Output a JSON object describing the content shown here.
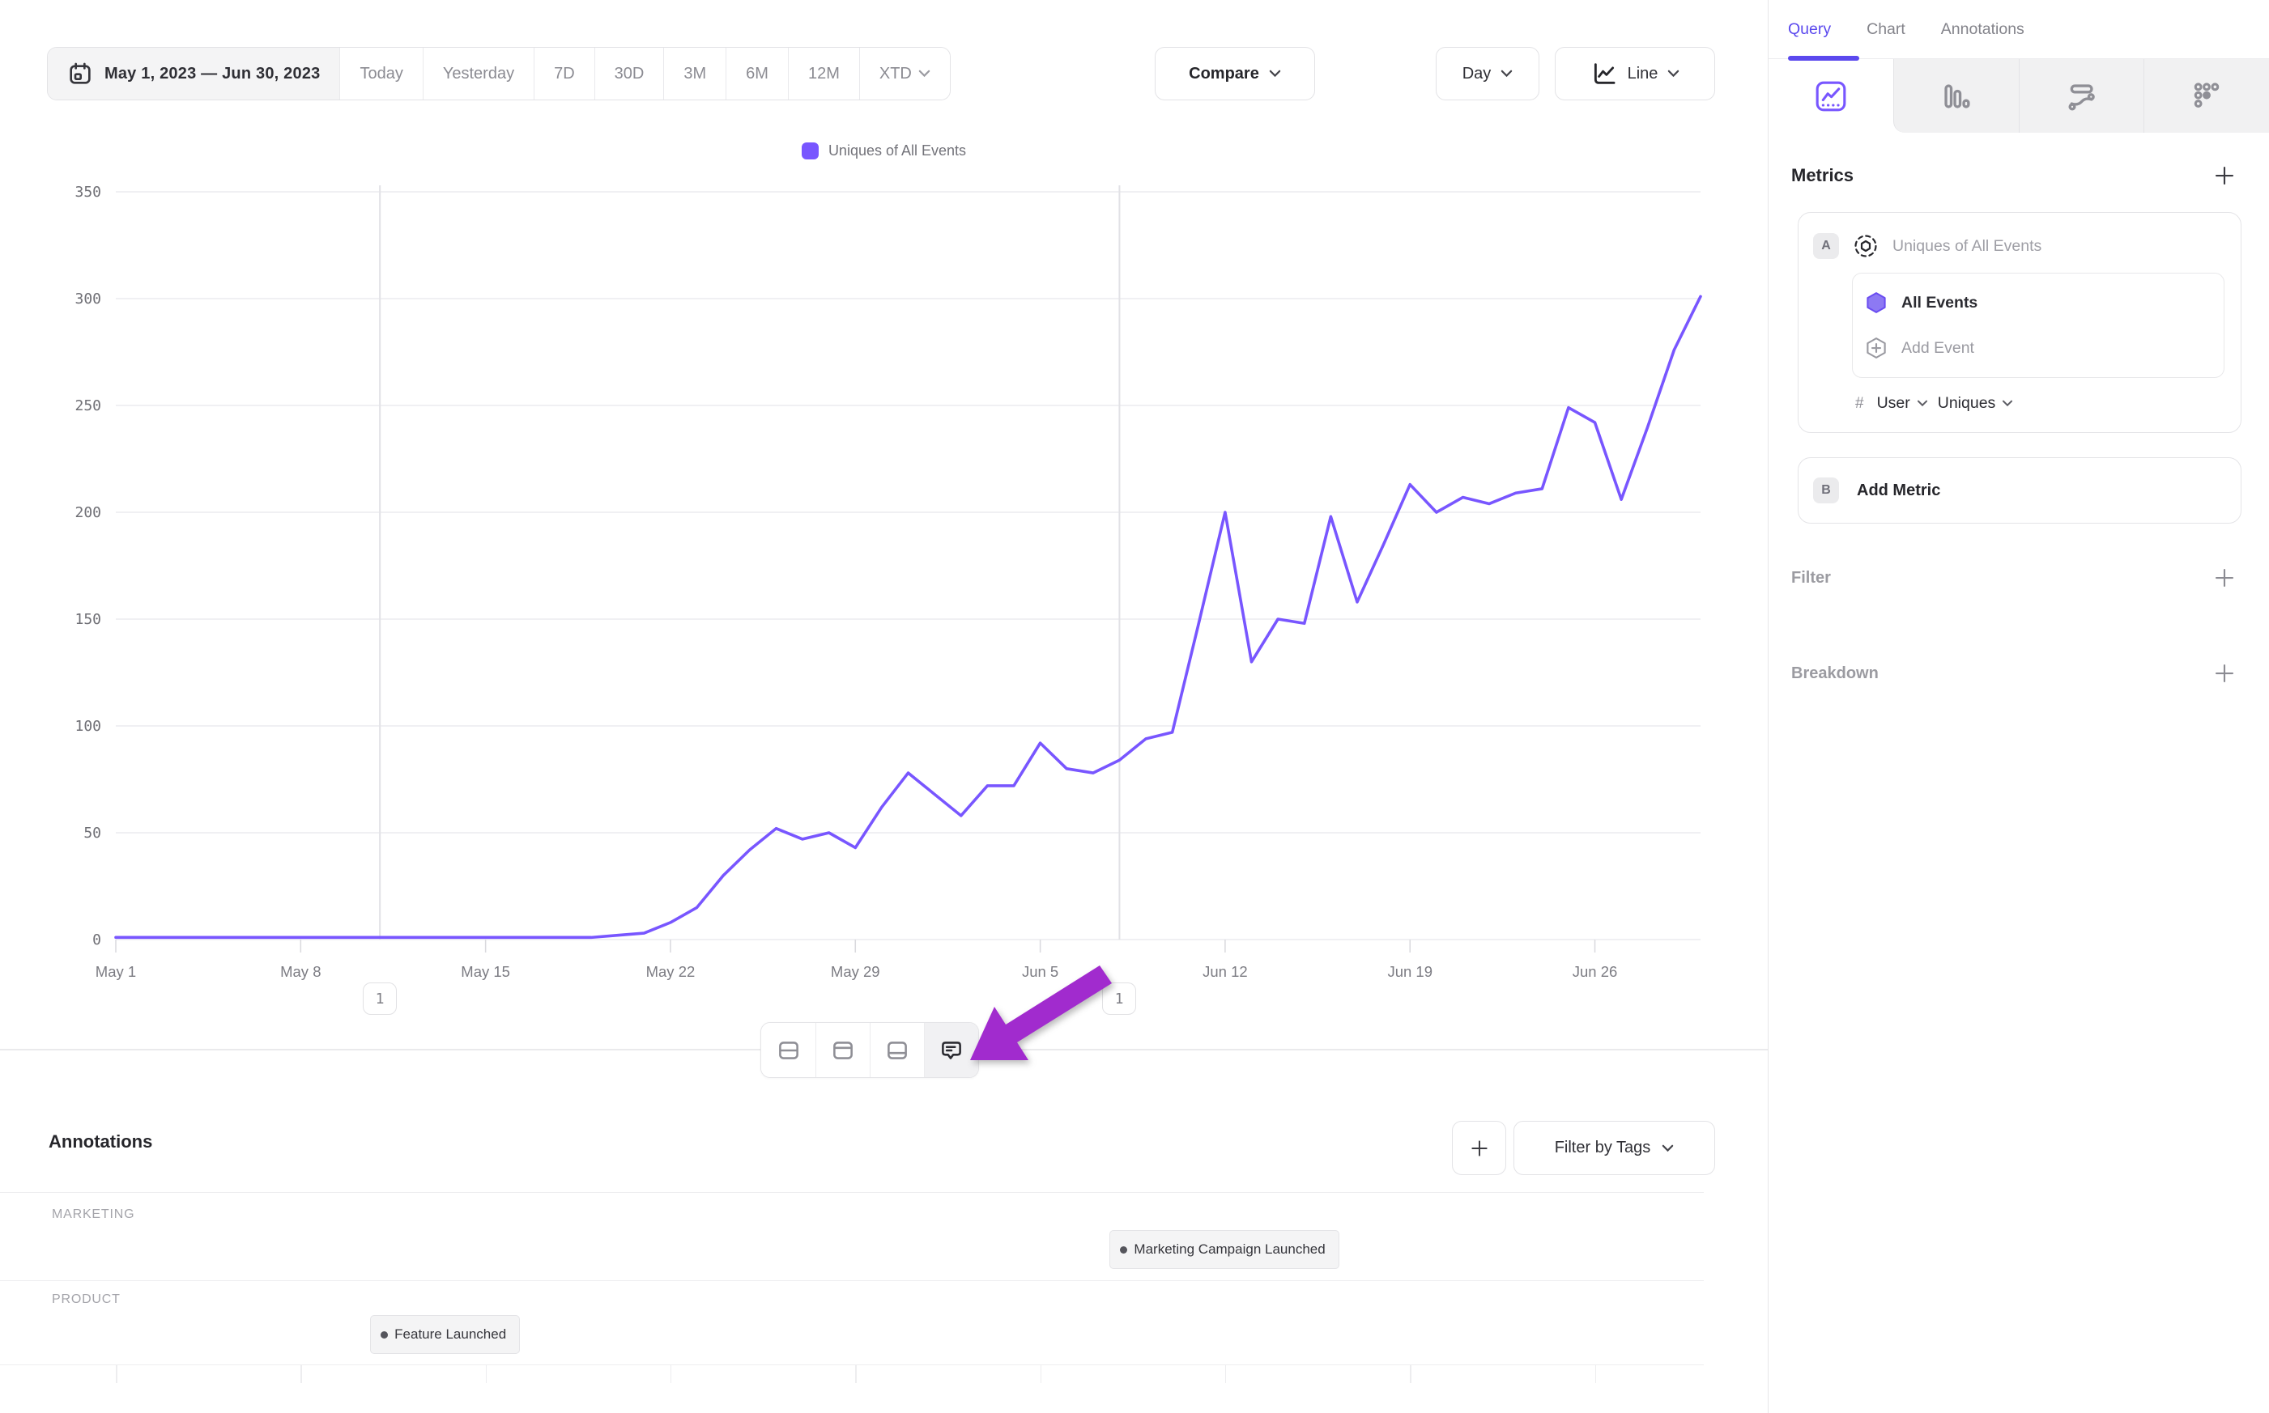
{
  "toolbar": {
    "date_range": "May 1, 2023 — Jun 30, 2023",
    "ranges": [
      "Today",
      "Yesterday",
      "7D",
      "30D",
      "3M",
      "6M",
      "12M"
    ],
    "xtd_label": "XTD",
    "compare_label": "Compare",
    "granularity_label": "Day",
    "chart_type_label": "Line"
  },
  "legend": {
    "label": "Uniques of All Events",
    "color": "#7856FF"
  },
  "chart_data": {
    "type": "line",
    "series_name": "Uniques of All Events",
    "x_start_date": "2023-05-01",
    "x_end_date": "2023-06-30",
    "values": [
      1,
      1,
      1,
      1,
      1,
      1,
      1,
      1,
      1,
      1,
      1,
      1,
      1,
      1,
      1,
      1,
      1,
      1,
      1,
      2,
      3,
      8,
      15,
      30,
      42,
      52,
      47,
      50,
      43,
      62,
      78,
      68,
      58,
      72,
      72,
      92,
      80,
      78,
      84,
      94,
      97,
      148,
      200,
      130,
      150,
      148,
      198,
      158,
      185,
      213,
      200,
      207,
      204,
      209,
      211,
      249,
      242,
      206,
      240,
      276,
      301
    ],
    "xticks": [
      "May 1",
      "May 8",
      "May 15",
      "May 22",
      "May 29",
      "Jun 5",
      "Jun 12",
      "Jun 19",
      "Jun 26"
    ],
    "xtick_day_indices": [
      0,
      7,
      14,
      21,
      28,
      35,
      42,
      49,
      56
    ],
    "yticks": [
      0,
      50,
      100,
      150,
      200,
      250,
      300,
      350
    ],
    "ylim": [
      0,
      350
    ],
    "grid": true,
    "line_color": "#7856FF",
    "legend_position": "top-center",
    "granularity": "Day",
    "annotation_markers": [
      {
        "day_index": 10,
        "date_label": "May 11",
        "count": "1"
      },
      {
        "day_index": 38,
        "date_label": "Jun 8",
        "count": "1"
      }
    ]
  },
  "chart_toolbar": {
    "icons": [
      "split-rows-icon",
      "panel-top-icon",
      "panel-bottom-icon",
      "annotation-comment-icon"
    ],
    "active": "annotation-comment-icon"
  },
  "pointer_arrow": {
    "color": "#A12BCE",
    "points_at": "annotation-comment-icon"
  },
  "annotations_section": {
    "title": "Annotations",
    "add_label": "+",
    "filter_by_tags_label": "Filter by Tags",
    "lanes": [
      {
        "label": "MARKETING",
        "items": [
          {
            "text": "Marketing Campaign Launched",
            "day_index": 38
          }
        ]
      },
      {
        "label": "PRODUCT",
        "items": [
          {
            "text": "Feature Launched",
            "day_index": 10
          }
        ]
      }
    ]
  },
  "sidebar": {
    "tabs": [
      {
        "label": "Query",
        "active": true
      },
      {
        "label": "Chart",
        "active": false
      },
      {
        "label": "Annotations",
        "active": false
      }
    ],
    "view_tabs": [
      "insights-line-icon",
      "bar-chart-icon",
      "flow-icon",
      "retention-grid-icon"
    ],
    "active_view_tab": "insights-line-icon",
    "metrics": {
      "title": "Metrics",
      "metric_a": {
        "badge": "A",
        "name": "Uniques of All Events",
        "events": [
          {
            "name": "All Events"
          }
        ],
        "add_event_label": "Add Event",
        "aggregation": {
          "prefix": "#",
          "entity": "User",
          "function": "Uniques"
        }
      },
      "metric_b": {
        "badge": "B",
        "label": "Add Metric"
      }
    },
    "filter": {
      "title": "Filter"
    },
    "breakdown": {
      "title": "Breakdown"
    }
  },
  "colors": {
    "accent_purple": "#7856FF",
    "query_accent": "#5B49EE",
    "arrow_purple": "#A12BCE",
    "grid_line": "#ececef",
    "border": "#e4e4e7"
  }
}
